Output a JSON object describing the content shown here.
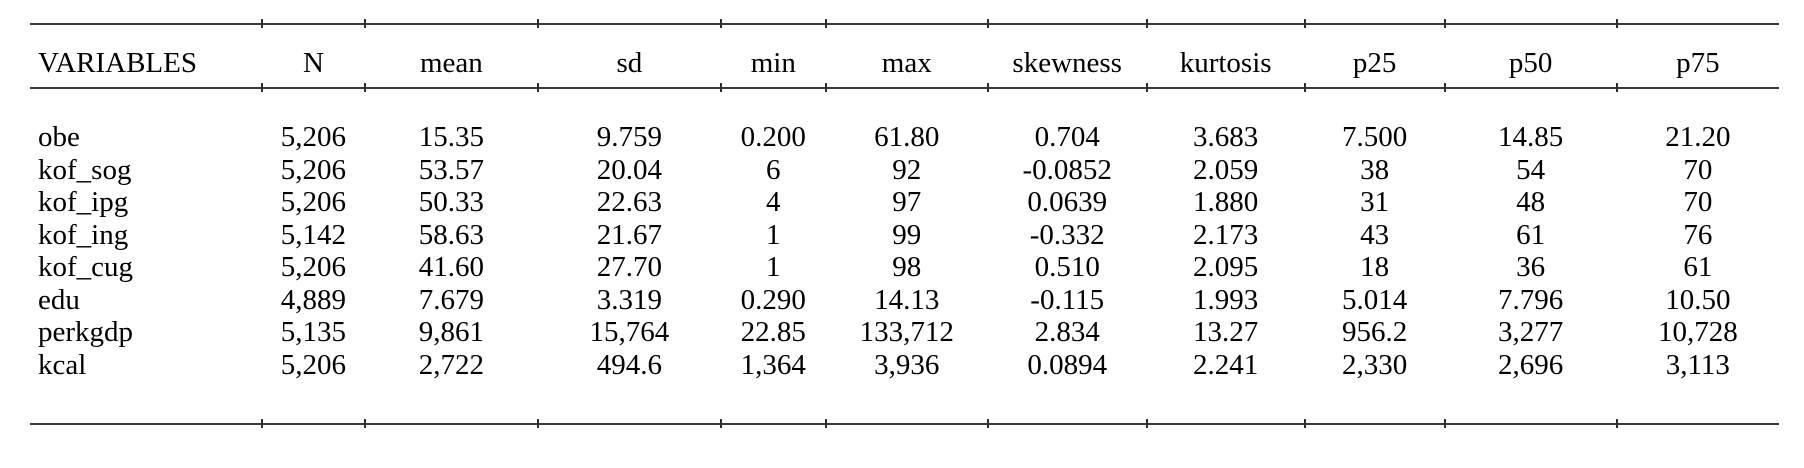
{
  "table": {
    "header": [
      "VARIABLES",
      "N",
      "mean",
      "sd",
      "min",
      "max",
      "skewness",
      "kurtosis",
      "p25",
      "p50",
      "p75"
    ],
    "rows": [
      [
        "obe",
        "5,206",
        "15.35",
        "9.759",
        "0.200",
        "61.80",
        "0.704",
        "3.683",
        "7.500",
        "14.85",
        "21.20"
      ],
      [
        "kof_sog",
        "5,206",
        "53.57",
        "20.04",
        "6",
        "92",
        "-0.0852",
        "2.059",
        "38",
        "54",
        "70"
      ],
      [
        "kof_ipg",
        "5,206",
        "50.33",
        "22.63",
        "4",
        "97",
        "0.0639",
        "1.880",
        "31",
        "48",
        "70"
      ],
      [
        "kof_ing",
        "5,142",
        "58.63",
        "21.67",
        "1",
        "99",
        "-0.332",
        "2.173",
        "43",
        "61",
        "76"
      ],
      [
        "kof_cug",
        "5,206",
        "41.60",
        "27.70",
        "1",
        "98",
        "0.510",
        "2.095",
        "18",
        "36",
        "61"
      ],
      [
        "edu",
        "4,889",
        "7.679",
        "3.319",
        "0.290",
        "14.13",
        "-0.115",
        "1.993",
        "5.014",
        "7.796",
        "10.50"
      ],
      [
        "perkgdp",
        "5,135",
        "9,861",
        "15,764",
        "22.85",
        "133,712",
        "2.834",
        "13.27",
        "956.2",
        "3,277",
        "10,728"
      ],
      [
        "kcal",
        "5,206",
        "2,722",
        "494.6",
        "1,364",
        "3,936",
        "0.0894",
        "2.241",
        "2,330",
        "2,696",
        "3,113"
      ]
    ]
  },
  "colors": {
    "rule": "#3a3a3a",
    "text": "#000000",
    "background": "#ffffff"
  }
}
